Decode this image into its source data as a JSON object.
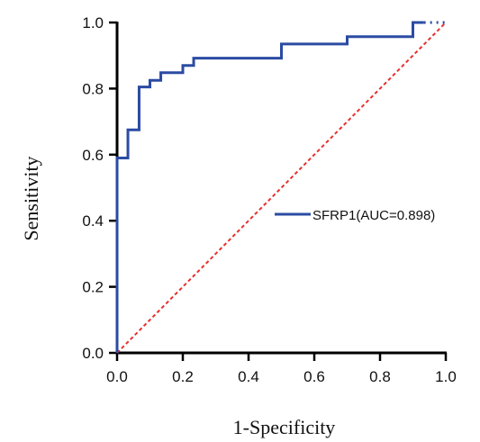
{
  "chart_data": {
    "type": "line",
    "title": "",
    "xlabel": "1-Specificity",
    "ylabel": "Sensitivity",
    "xlim": [
      0,
      1
    ],
    "ylim": [
      0,
      1
    ],
    "xticks": [
      "0.0",
      "0.2",
      "0.4",
      "0.6",
      "0.8",
      "1.0"
    ],
    "yticks": [
      "0.0",
      "0.2",
      "0.4",
      "0.6",
      "0.8",
      "1.0"
    ],
    "grid": false,
    "legend_position": "right-middle",
    "series": [
      {
        "name": "SFRP1(AUC=0.898)",
        "color": "#2b4ba3",
        "style": "solid-step",
        "points": [
          [
            0,
            0
          ],
          [
            0,
            0.59
          ],
          [
            0.033,
            0.59
          ],
          [
            0.033,
            0.675
          ],
          [
            0.067,
            0.675
          ],
          [
            0.067,
            0.805
          ],
          [
            0.1,
            0.805
          ],
          [
            0.1,
            0.825
          ],
          [
            0.133,
            0.825
          ],
          [
            0.133,
            0.848
          ],
          [
            0.2,
            0.848
          ],
          [
            0.2,
            0.87
          ],
          [
            0.233,
            0.87
          ],
          [
            0.233,
            0.892
          ],
          [
            0.5,
            0.892
          ],
          [
            0.5,
            0.935
          ],
          [
            0.7,
            0.935
          ],
          [
            0.7,
            0.957
          ],
          [
            0.9,
            0.957
          ],
          [
            0.9,
            1.0
          ],
          [
            0.9333,
            1.0
          ]
        ],
        "dotted_tail": [
          [
            0.9333,
            1.0
          ],
          [
            1.0,
            1.0
          ]
        ]
      },
      {
        "name": "",
        "color": "#e8302f",
        "style": "dashed-reference",
        "points": [
          [
            0,
            0
          ],
          [
            1,
            1
          ]
        ]
      }
    ]
  }
}
